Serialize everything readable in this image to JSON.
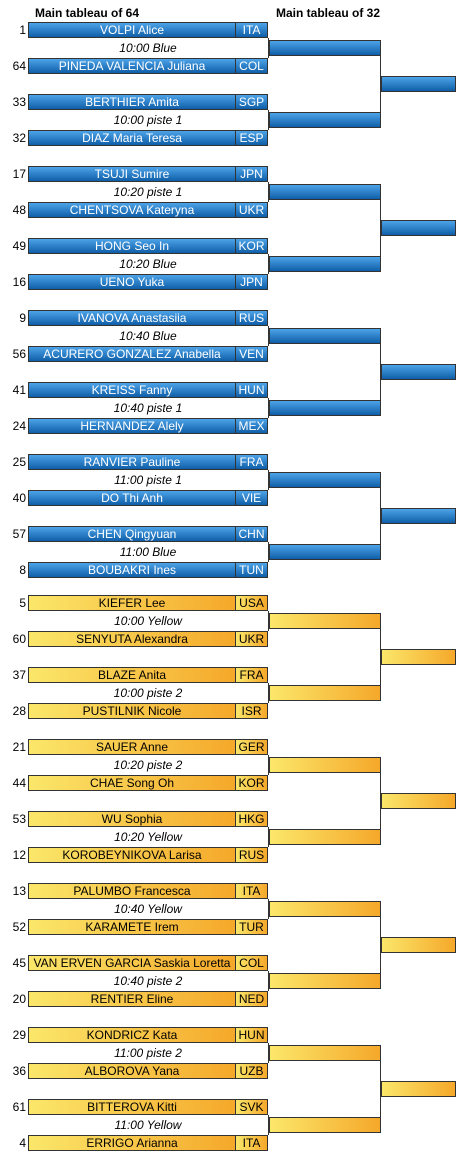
{
  "headers": {
    "col64": "Main tableau of 64",
    "col32": "Main tableau of 32"
  },
  "blocks": [
    {
      "color": "blue",
      "matches": [
        {
          "a": {
            "seed": "1",
            "name": "VOLPI Alice",
            "country": "ITA"
          },
          "time": "10:00 Blue",
          "b": {
            "seed": "64",
            "name": "PINEDA VALENCIA Juliana",
            "country": "COL"
          }
        },
        {
          "a": {
            "seed": "33",
            "name": "BERTHIER Amita",
            "country": "SGP"
          },
          "time": "10:00 piste 1",
          "b": {
            "seed": "32",
            "name": "DIAZ Maria Teresa",
            "country": "ESP"
          }
        },
        {
          "a": {
            "seed": "17",
            "name": "TSUJI Sumire",
            "country": "JPN"
          },
          "time": "10:20 piste 1",
          "b": {
            "seed": "48",
            "name": "CHENTSOVA Kateryna",
            "country": "UKR"
          }
        },
        {
          "a": {
            "seed": "49",
            "name": "HONG Seo In",
            "country": "KOR"
          },
          "time": "10:20 Blue",
          "b": {
            "seed": "16",
            "name": "UENO Yuka",
            "country": "JPN"
          }
        },
        {
          "a": {
            "seed": "9",
            "name": "IVANOVA Anastasiia",
            "country": "RUS"
          },
          "time": "10:40 Blue",
          "b": {
            "seed": "56",
            "name": "ACURERO GONZALEZ Anabella",
            "country": "VEN"
          }
        },
        {
          "a": {
            "seed": "41",
            "name": "KREISS Fanny",
            "country": "HUN"
          },
          "time": "10:40 piste 1",
          "b": {
            "seed": "24",
            "name": "HERNANDEZ Alely",
            "country": "MEX"
          }
        },
        {
          "a": {
            "seed": "25",
            "name": "RANVIER Pauline",
            "country": "FRA"
          },
          "time": "11:00 piste 1",
          "b": {
            "seed": "40",
            "name": "DO Thi Anh",
            "country": "VIE"
          }
        },
        {
          "a": {
            "seed": "57",
            "name": "CHEN Qingyuan",
            "country": "CHN"
          },
          "time": "11:00 Blue",
          "b": {
            "seed": "8",
            "name": "BOUBAKRI Ines",
            "country": "TUN"
          }
        }
      ]
    },
    {
      "color": "yellow",
      "matches": [
        {
          "a": {
            "seed": "5",
            "name": "KIEFER Lee",
            "country": "USA"
          },
          "time": "10:00 Yellow",
          "b": {
            "seed": "60",
            "name": "SENYUTA Alexandra",
            "country": "UKR"
          }
        },
        {
          "a": {
            "seed": "37",
            "name": "BLAZE Anita",
            "country": "FRA"
          },
          "time": "10:00 piste 2",
          "b": {
            "seed": "28",
            "name": "PUSTILNIK Nicole",
            "country": "ISR"
          }
        },
        {
          "a": {
            "seed": "21",
            "name": "SAUER Anne",
            "country": "GER"
          },
          "time": "10:20 piste 2",
          "b": {
            "seed": "44",
            "name": "CHAE Song Oh",
            "country": "KOR"
          }
        },
        {
          "a": {
            "seed": "53",
            "name": "WU Sophia",
            "country": "HKG"
          },
          "time": "10:20 Yellow",
          "b": {
            "seed": "12",
            "name": "KOROBEYNIKOVA Larisa",
            "country": "RUS"
          }
        },
        {
          "a": {
            "seed": "13",
            "name": "PALUMBO Francesca",
            "country": "ITA"
          },
          "time": "10:40 Yellow",
          "b": {
            "seed": "52",
            "name": "KARAMETE Irem",
            "country": "TUR"
          }
        },
        {
          "a": {
            "seed": "45",
            "name": "VAN ERVEN GARCIA Saskia Loretta",
            "country": "COL"
          },
          "time": "10:40 piste 2",
          "b": {
            "seed": "20",
            "name": "RENTIER Eline",
            "country": "NED"
          }
        },
        {
          "a": {
            "seed": "29",
            "name": "KONDRICZ Kata",
            "country": "HUN"
          },
          "time": "11:00 piste 2",
          "b": {
            "seed": "36",
            "name": "ALBOROVA Yana",
            "country": "UZB"
          }
        },
        {
          "a": {
            "seed": "61",
            "name": "BITTEROVA Kitti",
            "country": "SVK"
          },
          "time": "11:00 Yellow",
          "b": {
            "seed": "4",
            "name": "ERRIGO Arianna",
            "country": "ITA"
          }
        }
      ]
    }
  ]
}
